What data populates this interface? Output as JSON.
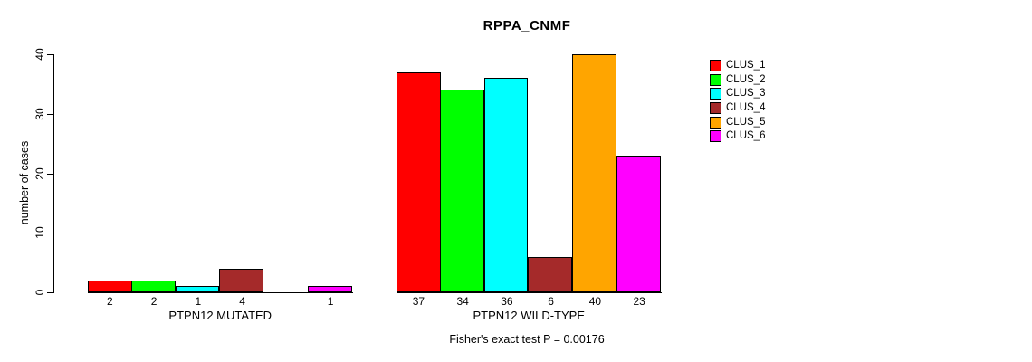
{
  "chart_data": {
    "type": "bar",
    "title": "RPPA_CNMF",
    "ylabel": "number of cases",
    "xlabel": "",
    "ylim": [
      0,
      40
    ],
    "yticks": [
      0,
      10,
      20,
      30,
      40
    ],
    "grid": false,
    "bar_value_labels": true,
    "legend_position": "top-right",
    "categories": [
      "PTPN12 MUTATED",
      "PTPN12 WILD-TYPE"
    ],
    "series": [
      {
        "name": "CLUS_1",
        "color": "#ff0000",
        "values": [
          2,
          37
        ]
      },
      {
        "name": "CLUS_2",
        "color": "#00ff00",
        "values": [
          2,
          34
        ]
      },
      {
        "name": "CLUS_3",
        "color": "#00ffff",
        "values": [
          1,
          36
        ]
      },
      {
        "name": "CLUS_4",
        "color": "#a52a2a",
        "values": [
          4,
          6
        ]
      },
      {
        "name": "CLUS_5",
        "color": "#ffa500",
        "values": [
          0,
          40
        ]
      },
      {
        "name": "CLUS_6",
        "color": "#ff00ff",
        "values": [
          1,
          23
        ]
      }
    ],
    "annotation": "Fisher's exact test P = 0.00176"
  }
}
